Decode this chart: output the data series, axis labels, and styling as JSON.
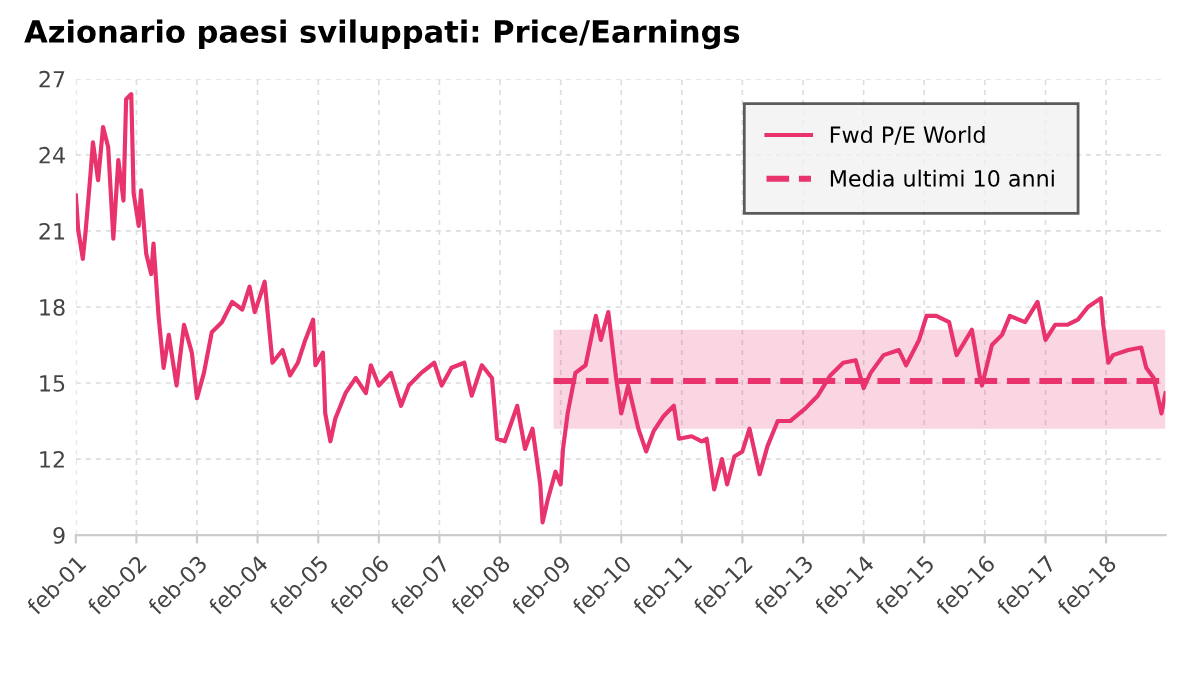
{
  "chart_data": {
    "type": "line",
    "title": "Azionario paesi sviluppati: Price/Earnings",
    "xlim": [
      "2001-02-01",
      "2019-01-25"
    ],
    "ylim": [
      9,
      27
    ],
    "yticks": [
      9,
      12,
      15,
      18,
      21,
      24,
      27
    ],
    "xticks": [
      {
        "value": "2001-02-01",
        "label": "feb-01"
      },
      {
        "value": "2002-02-01",
        "label": "feb-02"
      },
      {
        "value": "2003-02-01",
        "label": "feb-03"
      },
      {
        "value": "2004-02-01",
        "label": "feb-04"
      },
      {
        "value": "2005-02-01",
        "label": "feb-05"
      },
      {
        "value": "2006-02-01",
        "label": "feb-06"
      },
      {
        "value": "2007-02-01",
        "label": "feb-07"
      },
      {
        "value": "2008-02-01",
        "label": "feb-08"
      },
      {
        "value": "2009-02-01",
        "label": "feb-09"
      },
      {
        "value": "2010-02-01",
        "label": "feb-10"
      },
      {
        "value": "2011-02-01",
        "label": "feb-11"
      },
      {
        "value": "2012-02-01",
        "label": "feb-12"
      },
      {
        "value": "2013-02-01",
        "label": "feb-13"
      },
      {
        "value": "2014-02-01",
        "label": "feb-14"
      },
      {
        "value": "2015-02-01",
        "label": "feb-15"
      },
      {
        "value": "2016-02-01",
        "label": "feb-16"
      },
      {
        "value": "2017-02-01",
        "label": "feb-17"
      },
      {
        "value": "2018-02-01",
        "label": "feb-18"
      }
    ],
    "grid": true,
    "legend": "top right",
    "series": [
      {
        "name": "Fwd P/E World",
        "color": "#e8336d",
        "line_style": "solid",
        "x": [
          "2001-02-01",
          "2001-02-15",
          "2001-03-15",
          "2001-04-01",
          "2001-05-01",
          "2001-05-15",
          "2001-06-15",
          "2001-07-15",
          "2001-08-15",
          "2001-09-15",
          "2001-10-15",
          "2001-11-15",
          "2001-12-01",
          "2002-01-01",
          "2002-01-15",
          "2002-02-15",
          "2002-03-01",
          "2002-04-01",
          "2002-05-01",
          "2002-05-15",
          "2002-06-15",
          "2002-07-15",
          "2002-08-15",
          "2002-10-01",
          "2002-11-15",
          "2003-01-01",
          "2003-02-01",
          "2003-03-15",
          "2003-05-01",
          "2003-07-01",
          "2003-09-01",
          "2003-11-01",
          "2003-12-15",
          "2004-01-15",
          "2004-02-15",
          "2004-03-15",
          "2004-04-15",
          "2004-05-01",
          "2004-07-01",
          "2004-08-15",
          "2004-10-01",
          "2004-11-15",
          "2005-01-01",
          "2005-01-15",
          "2005-03-01",
          "2005-03-15",
          "2005-04-15",
          "2005-05-15",
          "2005-07-15",
          "2005-09-15",
          "2005-11-15",
          "2005-12-15",
          "2006-02-01",
          "2006-04-15",
          "2006-06-15",
          "2006-08-01",
          "2006-10-15",
          "2007-01-01",
          "2007-02-15",
          "2007-04-15",
          "2007-07-01",
          "2007-08-15",
          "2007-10-15",
          "2007-12-15",
          "2008-01-15",
          "2008-03-01",
          "2008-05-15",
          "2008-07-01",
          "2008-08-15",
          "2008-10-01",
          "2008-10-15",
          "2008-11-15",
          "2009-01-01",
          "2009-02-01",
          "2009-02-15",
          "2009-03-15",
          "2009-05-01",
          "2009-07-01",
          "2009-09-01",
          "2009-10-01",
          "2009-11-15",
          "2010-01-01",
          "2010-02-01",
          "2010-03-15",
          "2010-05-15",
          "2010-07-01",
          "2010-08-15",
          "2010-10-15",
          "2010-12-15",
          "2011-01-15",
          "2011-04-01",
          "2011-06-01",
          "2011-07-01",
          "2011-08-15",
          "2011-10-01",
          "2011-11-01",
          "2011-12-15",
          "2012-02-01",
          "2012-03-15",
          "2012-05-15",
          "2012-07-01",
          "2012-09-01",
          "2012-11-15",
          "2013-02-15",
          "2013-05-01",
          "2013-07-15",
          "2013-10-01",
          "2013-12-15",
          "2014-02-01",
          "2014-03-15",
          "2014-06-01",
          "2014-09-01",
          "2014-10-15",
          "2015-01-01",
          "2015-02-15",
          "2015-04-15",
          "2015-07-01",
          "2015-08-15",
          "2015-11-15",
          "2016-01-01",
          "2016-01-15",
          "2016-03-15",
          "2016-05-15",
          "2016-07-01",
          "2016-10-01",
          "2016-12-15",
          "2017-02-01",
          "2017-04-01",
          "2017-06-15",
          "2017-08-15",
          "2017-10-15",
          "2018-01-01",
          "2018-01-15",
          "2018-02-15",
          "2018-03-15",
          "2018-06-15",
          "2018-09-01",
          "2018-10-01",
          "2018-11-15",
          "2019-01-01",
          "2019-01-25"
        ],
        "values": [
          22.4,
          21.05,
          19.9,
          21.0,
          23.3,
          24.5,
          23.0,
          25.1,
          24.3,
          20.7,
          23.8,
          22.2,
          26.2,
          26.4,
          22.5,
          21.2,
          22.6,
          20.1,
          19.3,
          20.5,
          17.6,
          15.6,
          16.9,
          14.9,
          17.3,
          16.2,
          14.4,
          15.4,
          17.0,
          17.4,
          18.2,
          17.9,
          18.8,
          17.8,
          18.4,
          19.0,
          16.9,
          15.8,
          16.3,
          15.3,
          15.8,
          16.7,
          17.5,
          15.7,
          16.2,
          13.8,
          12.7,
          13.6,
          14.6,
          15.2,
          14.6,
          15.7,
          14.9,
          15.4,
          14.1,
          14.9,
          15.4,
          15.8,
          14.9,
          15.6,
          15.8,
          14.5,
          15.7,
          15.2,
          12.8,
          12.7,
          14.1,
          12.4,
          13.2,
          11.0,
          9.5,
          10.4,
          11.5,
          11.0,
          12.4,
          13.8,
          15.4,
          15.7,
          17.65,
          16.7,
          17.8,
          15.2,
          13.8,
          14.9,
          13.2,
          12.3,
          13.1,
          13.7,
          14.1,
          12.8,
          12.9,
          12.7,
          12.8,
          10.8,
          12.0,
          11.0,
          12.1,
          12.3,
          13.2,
          11.4,
          12.5,
          13.5,
          13.5,
          14.0,
          14.5,
          15.3,
          15.8,
          15.9,
          14.8,
          15.4,
          16.1,
          16.3,
          15.7,
          16.7,
          17.65,
          17.65,
          17.4,
          16.1,
          17.1,
          15.3,
          14.9,
          16.5,
          16.9,
          17.65,
          17.4,
          18.2,
          16.7,
          17.3,
          17.3,
          17.5,
          18.0,
          18.35,
          17.3,
          15.8,
          16.1,
          16.3,
          16.4,
          15.6,
          15.2,
          13.8,
          14.6
        ]
      },
      {
        "name": "Media ultimi 10 anni",
        "color": "#e8336d",
        "line_style": "dashed",
        "x": [
          "2008-12-20",
          "2019-01-25"
        ],
        "values": [
          15.08,
          15.08
        ],
        "lower": [
          13.2,
          13.2
        ],
        "upper": [
          17.1,
          17.1
        ]
      }
    ]
  }
}
